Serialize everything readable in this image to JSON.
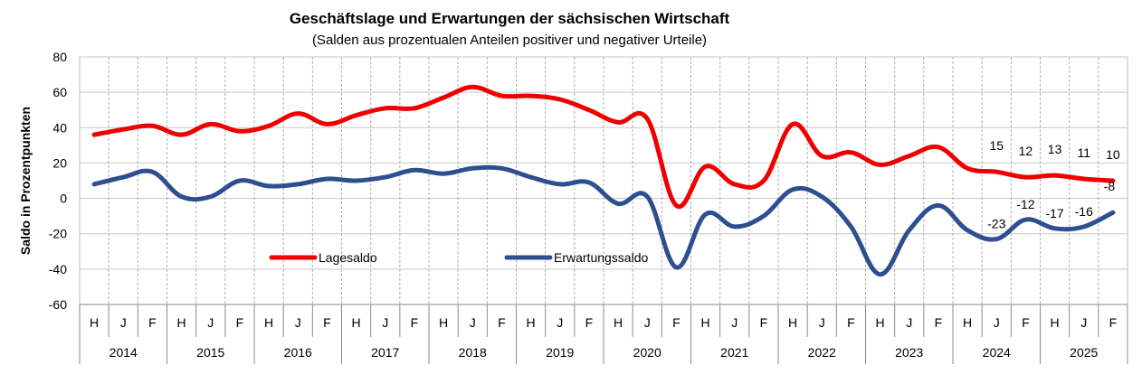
{
  "chart_data": {
    "type": "line",
    "title": "Geschäftslage und Erwartungen der sächsischen Wirtschaft",
    "subtitle": "(Salden aus prozentualen Anteilen positiver und negativer Urteile)",
    "ylabel": "Saldo in Prozentpunkten",
    "ylim": [
      -60,
      80
    ],
    "yticks": [
      "80",
      "60",
      "40",
      "20",
      "0",
      "-20",
      "-40",
      "-60"
    ],
    "categories": [
      "H",
      "J",
      "F",
      "H",
      "J",
      "F",
      "H",
      "J",
      "F",
      "H",
      "J",
      "F",
      "H",
      "J",
      "F",
      "H",
      "J",
      "F",
      "H",
      "J",
      "F",
      "H",
      "J",
      "F",
      "H",
      "J",
      "F",
      "H",
      "J",
      "F",
      "H",
      "J",
      "F",
      "H",
      "J",
      "F"
    ],
    "years": [
      {
        "label": "2014",
        "span": [
          0,
          2
        ]
      },
      {
        "label": "2015",
        "span": [
          3,
          5
        ]
      },
      {
        "label": "2016",
        "span": [
          6,
          8
        ]
      },
      {
        "label": "2017",
        "span": [
          9,
          11
        ]
      },
      {
        "label": "2018",
        "span": [
          12,
          14
        ]
      },
      {
        "label": "2019",
        "span": [
          15,
          17
        ]
      },
      {
        "label": "2020",
        "span": [
          18,
          20
        ]
      },
      {
        "label": "2021",
        "span": [
          21,
          23
        ]
      },
      {
        "label": "2022",
        "span": [
          24,
          26
        ]
      },
      {
        "label": "2023",
        "span": [
          27,
          29
        ]
      },
      {
        "label": "2024",
        "span": [
          30,
          32
        ]
      },
      {
        "label": "2025",
        "span": [
          33,
          35
        ]
      }
    ],
    "grid": true,
    "series": [
      {
        "name": "Lagesaldo",
        "color": "#ee0000",
        "values": [
          36,
          39,
          41,
          36,
          42,
          38,
          41,
          48,
          42,
          47,
          51,
          51,
          57,
          63,
          58,
          58,
          56,
          50,
          43,
          45,
          -4,
          18,
          8,
          10,
          42,
          24,
          26,
          19,
          24,
          29,
          17,
          15,
          12,
          13,
          11,
          10
        ]
      },
      {
        "name": "Erwartungssaldo",
        "color": "#2e4f8f",
        "values": [
          8,
          12,
          15,
          1,
          1,
          10,
          7,
          8,
          11,
          10,
          12,
          16,
          14,
          17,
          17,
          12,
          8,
          9,
          -3,
          1,
          -39,
          -9,
          -16,
          -10,
          5,
          1,
          -16,
          -43,
          -18,
          -4,
          -18,
          -23,
          -12,
          -17,
          -16,
          -8
        ]
      }
    ],
    "data_labels": [
      {
        "series": 0,
        "index": 31,
        "text": "15"
      },
      {
        "series": 0,
        "index": 32,
        "text": "12"
      },
      {
        "series": 0,
        "index": 33,
        "text": "13"
      },
      {
        "series": 0,
        "index": 34,
        "text": "11"
      },
      {
        "series": 0,
        "index": 35,
        "text": "10"
      },
      {
        "series": 1,
        "index": 31,
        "text": "-23"
      },
      {
        "series": 1,
        "index": 32,
        "text": "-12"
      },
      {
        "series": 1,
        "index": 33,
        "text": "-17"
      },
      {
        "series": 1,
        "index": 34,
        "text": "-16"
      },
      {
        "series": 1,
        "index": 35,
        "text": "-8"
      }
    ],
    "legend": [
      {
        "label": "Lagesaldo",
        "color": "#ee0000"
      },
      {
        "label": "Erwartungssaldo",
        "color": "#2e4f8f"
      }
    ]
  }
}
